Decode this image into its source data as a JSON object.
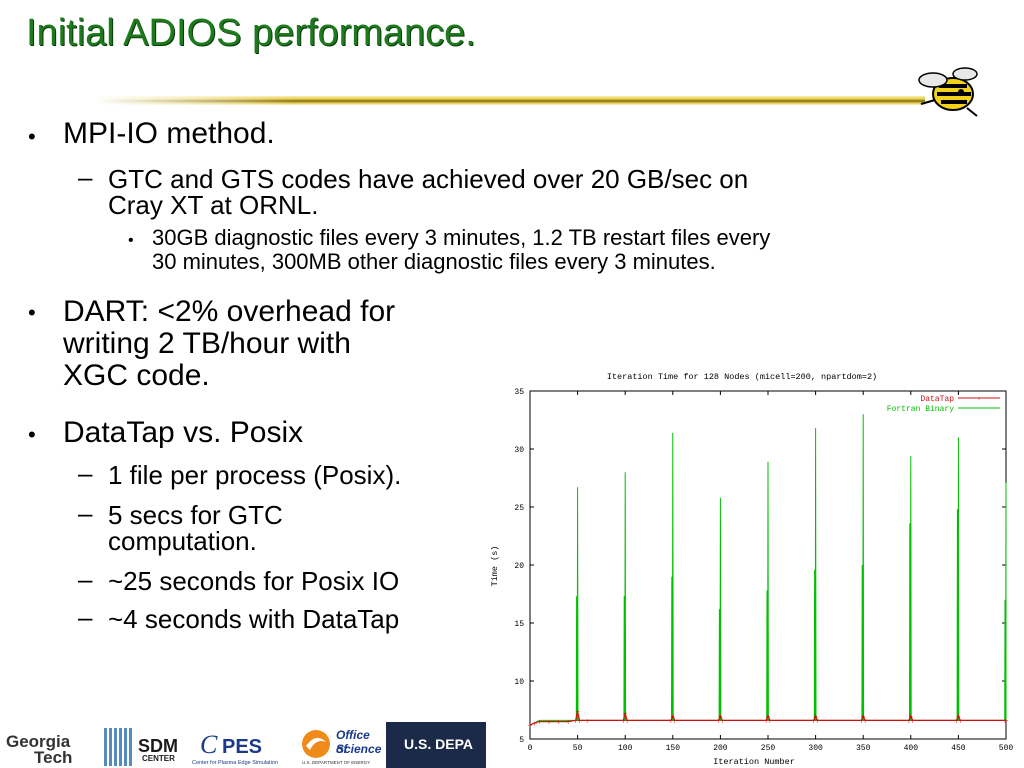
{
  "slide": {
    "title": "Initial ADIOS performance.",
    "bullets": {
      "b1": "MPI-IO method.",
      "b1_sub1": "GTC and GTS codes have achieved over 20 GB/sec on",
      "b1_sub1_l2": "Cray XT at ORNL.",
      "b1_sub1_sub1_l1": "30GB diagnostic files every 3 minutes, 1.2 TB restart files every",
      "b1_sub1_sub1_l2": "30 minutes, 300MB other diagnostic files every 3 minutes.",
      "b2_l1": "DART: <2% overhead for",
      "b2_l2": "writing 2 TB/hour with",
      "b2_l3": "XGC code.",
      "b3": "DataTap vs. Posix",
      "b3_sub1": "1 file per process (Posix).",
      "b3_sub2_l1": "5 secs for GTC",
      "b3_sub2_l2": "computation.",
      "b3_sub3": "~25 seconds for Posix IO",
      "b3_sub4": "~4 seconds with DataTap"
    },
    "bullet_char": "•",
    "dash_char": "–"
  },
  "footer": {
    "georgia_l1": "Georgia",
    "georgia_l2": "Tech",
    "sdm_l1": "SDM",
    "sdm_l2": "CENTER",
    "cpes": "PES",
    "cpes_sub": "Center for Plasma Edge Simulation",
    "office_l1": "Office of",
    "office_l2": "Science",
    "office_sub": "U.S. DEPARTMENT OF ENERGY",
    "usdep": "U.S. DEPA"
  },
  "colors": {
    "title": "#1d7a1d",
    "datatap": "#d01010",
    "fortran": "#00c000",
    "footer_dark": "#1c2a4a"
  },
  "chart_data": {
    "type": "line",
    "title": "Iteration Time for 128 Nodes (micell=200, npartdom=2)",
    "xlabel": "Iteration Number",
    "ylabel": "Time (s)",
    "xlim": [
      0,
      500
    ],
    "ylim": [
      5,
      35
    ],
    "xticks": [
      0,
      50,
      100,
      150,
      200,
      250,
      300,
      350,
      400,
      450,
      500
    ],
    "yticks": [
      5,
      10,
      15,
      20,
      25,
      30,
      35
    ],
    "legend_position": "top-right",
    "series": [
      {
        "name": "DataTap",
        "color": "#d01010",
        "baseline": 6.6,
        "x": [
          0,
          5,
          10,
          20,
          30,
          40,
          48,
          50,
          52,
          60,
          98,
          100,
          102,
          148,
          150,
          152,
          198,
          200,
          202,
          248,
          250,
          252,
          298,
          300,
          302,
          348,
          350,
          352,
          398,
          400,
          402,
          448,
          450,
          452,
          499,
          500
        ],
        "y": [
          6.2,
          6.4,
          6.5,
          6.5,
          6.5,
          6.5,
          6.6,
          7.4,
          6.6,
          6.6,
          6.6,
          7.2,
          6.6,
          6.6,
          7.0,
          6.6,
          6.6,
          7.0,
          6.6,
          6.6,
          7.0,
          6.6,
          6.6,
          7.0,
          6.6,
          6.6,
          7.0,
          6.6,
          6.6,
          7.0,
          6.6,
          6.6,
          7.0,
          6.6,
          6.6,
          6.6
        ]
      },
      {
        "name": "Fortran Binary",
        "color": "#00c000",
        "baseline": 6.6,
        "peaks": [
          {
            "x": 49,
            "y": 17.3
          },
          {
            "x": 50,
            "y": 26.7
          },
          {
            "x": 99,
            "y": 17.3
          },
          {
            "x": 100,
            "y": 28.0
          },
          {
            "x": 149,
            "y": 19.0
          },
          {
            "x": 150,
            "y": 31.4
          },
          {
            "x": 199,
            "y": 16.2
          },
          {
            "x": 200,
            "y": 25.8
          },
          {
            "x": 249,
            "y": 17.8
          },
          {
            "x": 250,
            "y": 28.9
          },
          {
            "x": 299,
            "y": 19.6
          },
          {
            "x": 300,
            "y": 31.8
          },
          {
            "x": 349,
            "y": 20.0
          },
          {
            "x": 350,
            "y": 33.0
          },
          {
            "x": 399,
            "y": 23.6
          },
          {
            "x": 400,
            "y": 29.4
          },
          {
            "x": 449,
            "y": 24.8
          },
          {
            "x": 450,
            "y": 31.0
          },
          {
            "x": 499,
            "y": 17.0
          },
          {
            "x": 500,
            "y": 27.1
          }
        ]
      }
    ]
  }
}
